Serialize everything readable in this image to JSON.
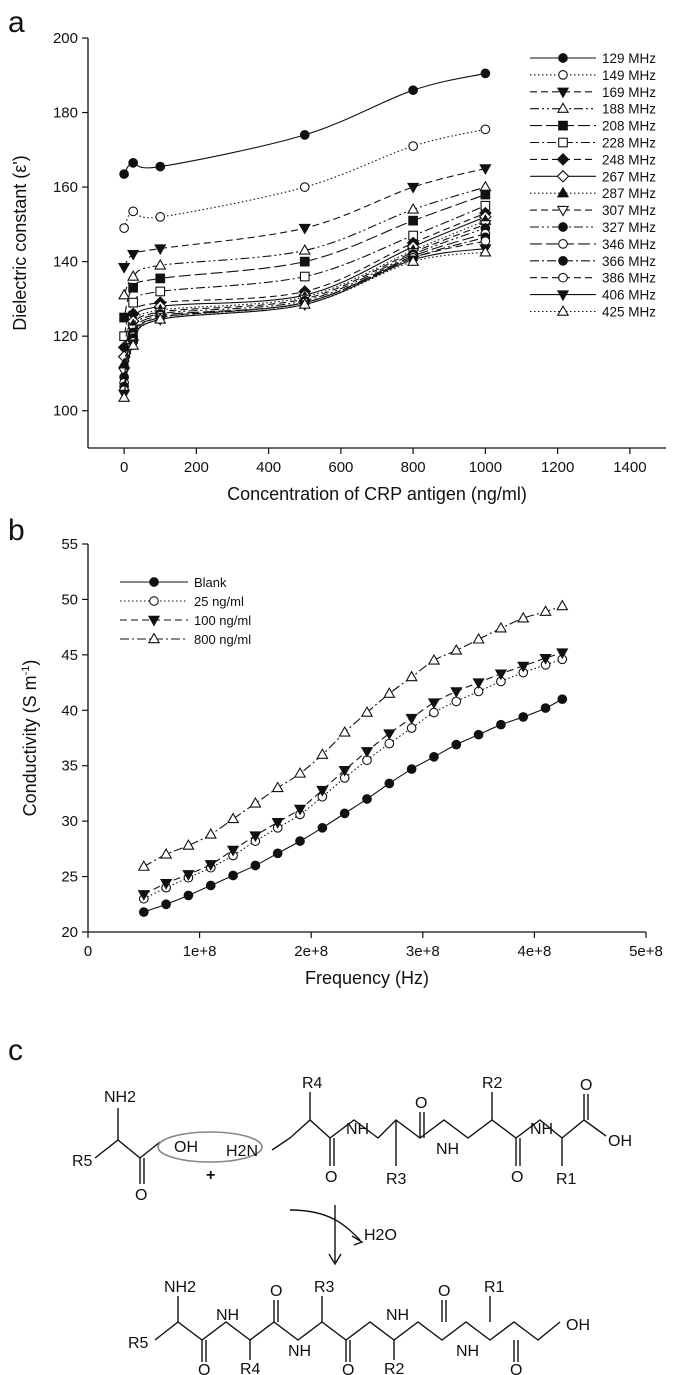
{
  "panels": {
    "a": "a",
    "b": "b",
    "c": "c"
  },
  "chart_data": [
    {
      "type": "line",
      "panel": "a",
      "xlabel": "Concentration of CRP antigen (ng/ml)",
      "ylabel": "Dielectric constant (ε')",
      "xlim": [
        -100,
        1500
      ],
      "ylim": [
        90,
        200
      ],
      "xticks": [
        "0",
        "200",
        "400",
        "600",
        "800",
        "1000",
        "1200",
        "1400"
      ],
      "yticks": [
        "100",
        "120",
        "140",
        "160",
        "180",
        "200"
      ],
      "legend_position": "right",
      "x": [
        0,
        25,
        100,
        500,
        800,
        1000
      ],
      "series": [
        {
          "name": "129 MHz",
          "values": [
            163.5,
            166.5,
            165.5,
            174,
            186,
            190.5
          ],
          "marker": "circle-filled",
          "dash": "solid"
        },
        {
          "name": "149 MHz",
          "values": [
            149,
            153.5,
            152,
            160,
            171,
            175.5
          ],
          "marker": "circle-open",
          "dash": "dot"
        },
        {
          "name": "169 MHz",
          "values": [
            138.5,
            142,
            143.5,
            149,
            160,
            165
          ],
          "marker": "tri-down-filled",
          "dash": "dash"
        },
        {
          "name": "188 MHz",
          "values": [
            131,
            136,
            139,
            143,
            154,
            160
          ],
          "marker": "tri-up-open",
          "dash": "dashdotdot"
        },
        {
          "name": "208 MHz",
          "values": [
            125,
            133,
            135.5,
            140,
            151,
            158
          ],
          "marker": "square-filled",
          "dash": "longdash"
        },
        {
          "name": "228 MHz",
          "values": [
            120,
            129,
            132,
            136,
            147,
            155
          ],
          "marker": "square-open",
          "dash": "dashdot"
        },
        {
          "name": "248 MHz",
          "values": [
            117,
            126,
            129,
            132,
            145,
            153
          ],
          "marker": "diamond-filled",
          "dash": "dash"
        },
        {
          "name": "267 MHz",
          "values": [
            114.5,
            124,
            128,
            131,
            144,
            152
          ],
          "marker": "diamond-open",
          "dash": "solid"
        },
        {
          "name": "287 MHz",
          "values": [
            112.5,
            123,
            127,
            130.5,
            143,
            151
          ],
          "marker": "tri-up-filled",
          "dash": "dot"
        },
        {
          "name": "307 MHz",
          "values": [
            110.5,
            122,
            126.5,
            130,
            142.5,
            150
          ],
          "marker": "tri-down-open",
          "dash": "dash"
        },
        {
          "name": "327 MHz",
          "values": [
            109,
            121,
            126,
            129.5,
            142,
            149
          ],
          "marker": "circle-filled",
          "dash": "dashdotdot"
        },
        {
          "name": "346 MHz",
          "values": [
            107.5,
            120,
            125.5,
            129,
            141.5,
            147.5
          ],
          "marker": "circle-open",
          "dash": "longdash"
        },
        {
          "name": "366 MHz",
          "values": [
            106.5,
            119.5,
            125,
            129,
            141,
            146.5
          ],
          "marker": "circle-filled",
          "dash": "dashdot"
        },
        {
          "name": "386 MHz",
          "values": [
            105.5,
            118.5,
            125,
            129,
            141,
            145.5
          ],
          "marker": "circle-open",
          "dash": "dash"
        },
        {
          "name": "406 MHz",
          "values": [
            104.5,
            118,
            124.5,
            128.5,
            140.5,
            143.5
          ],
          "marker": "tri-down-filled",
          "dash": "solid"
        },
        {
          "name": "425 MHz",
          "values": [
            103.5,
            117.5,
            124.5,
            128.5,
            140,
            142.5
          ],
          "marker": "tri-up-open",
          "dash": "dot"
        }
      ]
    },
    {
      "type": "line",
      "panel": "b",
      "xlabel": "Frequency (Hz)",
      "ylabel": "Conductivity (S m-1)",
      "ylabel_main": "Conductivity (S m",
      "ylabel_sup": "-1",
      "ylabel_close": ")",
      "xlim": [
        0,
        500000000
      ],
      "ylim": [
        20,
        55
      ],
      "xticks": [
        "0",
        "1e+8",
        "2e+8",
        "3e+8",
        "4e+8",
        "5e+8"
      ],
      "yticks": [
        "20",
        "25",
        "30",
        "35",
        "40",
        "45",
        "50",
        "55"
      ],
      "legend_position": "top-left",
      "x": [
        50000000,
        70000000,
        90000000,
        110000000,
        130000000,
        150000000,
        170000000,
        190000000,
        210000000,
        230000000,
        250000000,
        270000000,
        290000000,
        310000000,
        330000000,
        350000000,
        370000000,
        390000000,
        410000000,
        425000000
      ],
      "series": [
        {
          "name": "Blank",
          "marker": "circle-filled",
          "dash": "solid",
          "values": [
            21.8,
            22.5,
            23.3,
            24.2,
            25.1,
            26.0,
            27.1,
            28.2,
            29.4,
            30.7,
            32.0,
            33.4,
            34.7,
            35.8,
            36.9,
            37.8,
            38.7,
            39.4,
            40.2,
            41.0
          ]
        },
        {
          "name": "25 ng/ml",
          "marker": "circle-open",
          "dash": "dot",
          "values": [
            23.0,
            24.0,
            24.9,
            25.8,
            26.9,
            28.2,
            29.4,
            30.6,
            32.2,
            33.9,
            35.5,
            37.0,
            38.4,
            39.8,
            40.8,
            41.7,
            42.6,
            43.4,
            44.1,
            44.6
          ]
        },
        {
          "name": "100 ng/ml",
          "marker": "tri-down-filled",
          "dash": "dash",
          "values": [
            23.4,
            24.4,
            25.2,
            26.1,
            27.4,
            28.7,
            29.9,
            31.1,
            32.8,
            34.6,
            36.3,
            37.9,
            39.3,
            40.7,
            41.7,
            42.5,
            43.3,
            44.0,
            44.7,
            45.2
          ]
        },
        {
          "name": "800 ng/ml",
          "marker": "tri-up-open",
          "dash": "dashdot",
          "values": [
            25.9,
            27.0,
            27.8,
            28.8,
            30.2,
            31.6,
            33.0,
            34.3,
            36.0,
            38.0,
            39.8,
            41.5,
            43.0,
            44.5,
            45.4,
            46.4,
            47.4,
            48.3,
            48.9,
            49.4
          ]
        }
      ]
    }
  ],
  "scheme": {
    "top": {
      "nh2": "NH2",
      "oh": "OH",
      "h2n": "H2N",
      "plus": "+",
      "r5": "R5",
      "r4": "R4",
      "r3": "R3",
      "r2": "R2",
      "r1": "R1",
      "nh_1": "NH",
      "nh_2": "NH",
      "nh_3": "NH",
      "o_1": "O",
      "o_2": "O",
      "o_3": "O",
      "o_4": "O",
      "o_5": "O",
      "oh_end": "OH"
    },
    "arrow_product": "H2O",
    "bottom": {
      "nh2": "NH2",
      "r5": "R5",
      "r4": "R4",
      "r3": "R3",
      "r2": "R2",
      "r1": "R1",
      "nh_1": "NH",
      "nh_2": "NH",
      "nh_3": "NH",
      "nh_4": "NH",
      "o_1": "O",
      "o_2": "O",
      "o_3": "O",
      "o_4": "O",
      "o_5": "O",
      "oh_end": "OH"
    }
  }
}
